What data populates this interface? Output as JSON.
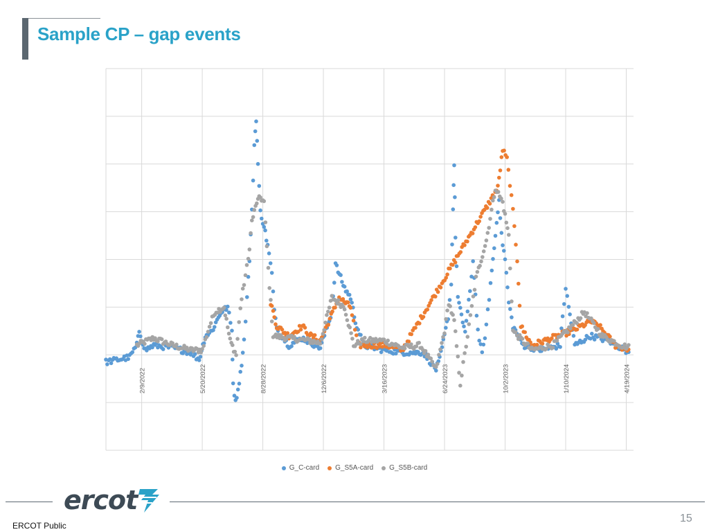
{
  "slide": {
    "title": "Sample CP – gap events",
    "footer_label": "ERCOT Public",
    "page_number": "15",
    "logo_text": "ercot"
  },
  "chart_data": {
    "type": "scatter",
    "x_tick_labels": [
      "2/9/2022",
      "5/20/2022",
      "8/28/2022",
      "12/6/2022",
      "3/16/2023",
      "6/24/2023",
      "10/2/2023",
      "1/10/2024",
      "4/19/2024"
    ],
    "x_range": [
      "2021-12-12",
      "2024-05-01"
    ],
    "y_range": [
      -2,
      6
    ],
    "y_axis_labels": "none",
    "grid": true,
    "legend_position": "bottom",
    "series": [
      {
        "name": "G_C-card",
        "color": "#5b9bd5",
        "key_points": [
          [
            "2021-12-12",
            -0.15
          ],
          [
            "2022-01-20",
            -0.05
          ],
          [
            "2022-02-01",
            0.2
          ],
          [
            "2022-02-05",
            0.5
          ],
          [
            "2022-02-15",
            0.1
          ],
          [
            "2022-03-01",
            0.2
          ],
          [
            "2022-04-01",
            0.15
          ],
          [
            "2022-05-01",
            0.05
          ],
          [
            "2022-05-15",
            -0.1
          ],
          [
            "2022-05-25",
            0.4
          ],
          [
            "2022-06-05",
            0.5
          ],
          [
            "2022-06-20",
            0.9
          ],
          [
            "2022-07-01",
            1.0
          ],
          [
            "2022-07-08",
            0.5
          ],
          [
            "2022-07-10",
            -0.6
          ],
          [
            "2022-07-14",
            -1.0
          ],
          [
            "2022-07-22",
            -0.4
          ],
          [
            "2022-07-28",
            0.3
          ],
          [
            "2022-08-02",
            1.2
          ],
          [
            "2022-08-06",
            2.0
          ],
          [
            "2022-08-10",
            3.0
          ],
          [
            "2022-08-14",
            4.4
          ],
          [
            "2022-08-17",
            4.95
          ],
          [
            "2022-08-20",
            4.0
          ],
          [
            "2022-08-24",
            3.0
          ],
          [
            "2022-08-30",
            2.7
          ],
          [
            "2022-09-05",
            2.3
          ],
          [
            "2022-09-12",
            1.7
          ],
          [
            "2022-09-16",
            0.9
          ],
          [
            "2022-09-22",
            0.5
          ],
          [
            "2022-10-10",
            0.2
          ],
          [
            "2022-11-01",
            0.35
          ],
          [
            "2022-12-01",
            0.15
          ],
          [
            "2022-12-10",
            0.5
          ],
          [
            "2022-12-20",
            0.9
          ],
          [
            "2022-12-26",
            1.9
          ],
          [
            "2023-01-10",
            1.4
          ],
          [
            "2023-01-20",
            1.2
          ],
          [
            "2023-01-28",
            0.7
          ],
          [
            "2023-02-10",
            0.2
          ],
          [
            "2023-03-16",
            0.1
          ],
          [
            "2023-04-20",
            0.05
          ],
          [
            "2023-05-20",
            0.05
          ],
          [
            "2023-06-10",
            -0.3
          ],
          [
            "2023-06-16",
            -0.1
          ],
          [
            "2023-06-24",
            0.4
          ],
          [
            "2023-06-30",
            0.8
          ],
          [
            "2023-07-05",
            1.5
          ],
          [
            "2023-07-08",
            3.1
          ],
          [
            "2023-07-10",
            4.0
          ],
          [
            "2023-07-12",
            2.5
          ],
          [
            "2023-07-16",
            1.2
          ],
          [
            "2023-07-22",
            0.8
          ],
          [
            "2023-07-28",
            0.5
          ],
          [
            "2023-08-05",
            1.3
          ],
          [
            "2023-08-10",
            2.0
          ],
          [
            "2023-08-18",
            0.5
          ],
          [
            "2023-08-25",
            0.0
          ],
          [
            "2023-09-01",
            0.6
          ],
          [
            "2023-09-08",
            1.5
          ],
          [
            "2023-09-16",
            2.5
          ],
          [
            "2023-09-22",
            3.3
          ],
          [
            "2023-09-26",
            2.5
          ],
          [
            "2023-10-02",
            2.0
          ],
          [
            "2023-10-08",
            1.1
          ],
          [
            "2023-10-15",
            0.6
          ],
          [
            "2023-11-01",
            0.2
          ],
          [
            "2023-12-01",
            0.1
          ],
          [
            "2024-01-01",
            0.2
          ],
          [
            "2024-01-05",
            0.8
          ],
          [
            "2024-01-10",
            1.4
          ],
          [
            "2024-01-15",
            1.0
          ],
          [
            "2024-01-25",
            0.2
          ],
          [
            "2024-02-20",
            0.4
          ],
          [
            "2024-03-20",
            0.3
          ],
          [
            "2024-04-10",
            0.15
          ],
          [
            "2024-04-25",
            0.05
          ]
        ]
      },
      {
        "name": "G_S5A-card",
        "color": "#ed7d31",
        "key_points": [
          [
            "2022-09-10",
            1.1
          ],
          [
            "2022-09-20",
            0.6
          ],
          [
            "2022-10-10",
            0.4
          ],
          [
            "2022-11-01",
            0.6
          ],
          [
            "2022-11-15",
            0.4
          ],
          [
            "2022-12-01",
            0.3
          ],
          [
            "2023-01-01",
            1.2
          ],
          [
            "2023-01-20",
            1.0
          ],
          [
            "2023-02-01",
            0.2
          ],
          [
            "2023-03-20",
            0.2
          ],
          [
            "2023-04-15",
            0.1
          ],
          [
            "2023-09-20",
            3.5
          ],
          [
            "2023-09-28",
            4.3
          ],
          [
            "2023-10-05",
            4.1
          ],
          [
            "2023-10-10",
            3.6
          ],
          [
            "2023-10-15",
            3.0
          ],
          [
            "2023-10-22",
            2.0
          ],
          [
            "2023-10-28",
            0.6
          ],
          [
            "2023-11-15",
            0.2
          ],
          [
            "2024-01-20",
            0.5
          ],
          [
            "2024-02-20",
            0.7
          ],
          [
            "2024-03-05",
            0.6
          ],
          [
            "2024-04-01",
            0.2
          ],
          [
            "2024-04-25",
            0.1
          ]
        ]
      },
      {
        "name": "G_S5B-card",
        "color": "#a5a5a5",
        "key_points": [
          [
            "2022-02-01",
            0.2
          ],
          [
            "2022-03-01",
            0.35
          ],
          [
            "2022-04-01",
            0.2
          ],
          [
            "2022-05-01",
            0.1
          ],
          [
            "2022-05-20",
            0.1
          ],
          [
            "2022-06-01",
            0.6
          ],
          [
            "2022-06-10",
            0.9
          ],
          [
            "2022-06-25",
            1.0
          ],
          [
            "2022-07-05",
            0.3
          ],
          [
            "2022-07-15",
            0.0
          ],
          [
            "2022-07-22",
            1.0
          ],
          [
            "2022-07-28",
            1.5
          ],
          [
            "2022-08-04",
            2.0
          ],
          [
            "2022-08-10",
            2.8
          ],
          [
            "2022-08-18",
            3.2
          ],
          [
            "2022-08-24",
            3.3
          ],
          [
            "2022-08-30",
            3.2
          ],
          [
            "2022-09-06",
            1.8
          ],
          [
            "2022-09-14",
            0.4
          ],
          [
            "2022-10-10",
            0.35
          ],
          [
            "2022-11-10",
            0.3
          ],
          [
            "2022-12-01",
            0.25
          ],
          [
            "2022-12-20",
            1.2
          ],
          [
            "2023-01-10",
            1.0
          ],
          [
            "2023-01-25",
            0.2
          ],
          [
            "2023-02-10",
            0.3
          ],
          [
            "2023-03-16",
            0.3
          ],
          [
            "2023-04-15",
            0.15
          ],
          [
            "2023-05-15",
            0.2
          ],
          [
            "2023-06-10",
            -0.3
          ],
          [
            "2023-06-24",
            0.5
          ],
          [
            "2023-07-01",
            1.1
          ],
          [
            "2023-07-10",
            0.7
          ],
          [
            "2023-07-20",
            -0.6
          ],
          [
            "2023-08-01",
            0.4
          ],
          [
            "2023-08-15",
            1.6
          ],
          [
            "2023-09-01",
            2.4
          ],
          [
            "2023-09-16",
            3.5
          ],
          [
            "2023-09-28",
            3.2
          ],
          [
            "2023-10-08",
            2.5
          ],
          [
            "2023-10-15",
            0.5
          ],
          [
            "2023-11-15",
            0.1
          ],
          [
            "2023-12-20",
            0.2
          ],
          [
            "2024-01-20",
            0.6
          ],
          [
            "2024-02-10",
            0.9
          ],
          [
            "2024-03-10",
            0.4
          ],
          [
            "2024-04-10",
            0.2
          ],
          [
            "2024-04-25",
            0.15
          ]
        ]
      }
    ]
  }
}
